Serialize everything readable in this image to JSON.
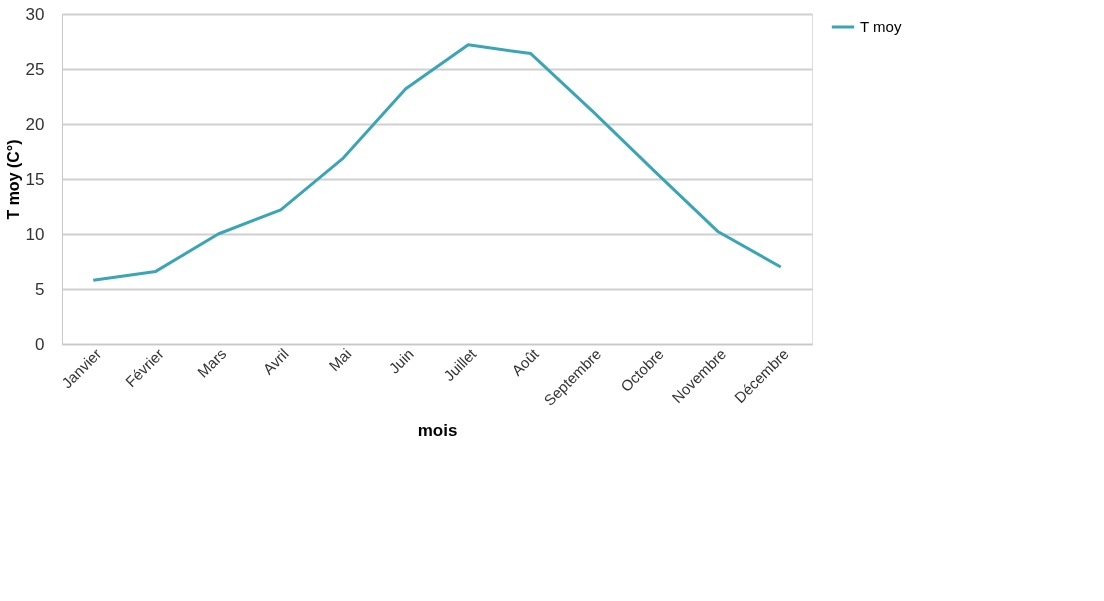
{
  "chart_data": {
    "type": "line",
    "xlabel": "mois",
    "ylabel": "T moy (C°)",
    "categories": [
      "Janvier",
      "Février",
      "Mars",
      "Avril",
      "Mai",
      "Juin",
      "Juillet",
      "Août",
      "Septembre",
      "Octobre",
      "Novembre",
      "Décembre"
    ],
    "series": [
      {
        "name": "T moy",
        "color": "#3aa5b5",
        "values": [
          5.8,
          6.6,
          10.0,
          12.2,
          16.9,
          23.2,
          27.2,
          26.4,
          21.1,
          15.6,
          10.2,
          7.0
        ]
      }
    ],
    "ylim": [
      0,
      30
    ],
    "yticks": [
      0,
      5,
      10,
      15,
      20,
      25,
      30
    ],
    "grid": "y",
    "legend": "right",
    "marker": "none",
    "line_style": "solid"
  }
}
